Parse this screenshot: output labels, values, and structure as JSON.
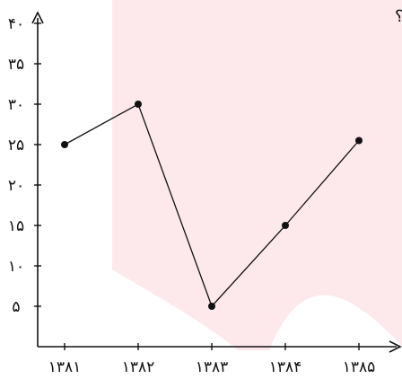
{
  "caption": "؟ افتاده است",
  "caption_head": "افتاده است؟",
  "chart_data": {
    "type": "line",
    "x": [
      "۱۳۸۱",
      "۱۳۸۲",
      "۱۳۸۳",
      "۱۳۸۴",
      "۱۳۸۵"
    ],
    "y_ticks": [
      "۵",
      "۱۰",
      "۱۵",
      "۲۰",
      "۲۵",
      "۳۰",
      "۳۵",
      "۴۰"
    ],
    "y_tick_values": [
      5,
      10,
      15,
      20,
      25,
      30,
      35,
      40
    ],
    "values": [
      25,
      30,
      5,
      15,
      25.5
    ],
    "ylim": [
      0,
      40
    ],
    "grid": false,
    "title": "",
    "xlabel": "",
    "ylabel": ""
  },
  "colors": {
    "background_shape": "#fde8ec",
    "line": "#111111",
    "axis": "#111111"
  }
}
